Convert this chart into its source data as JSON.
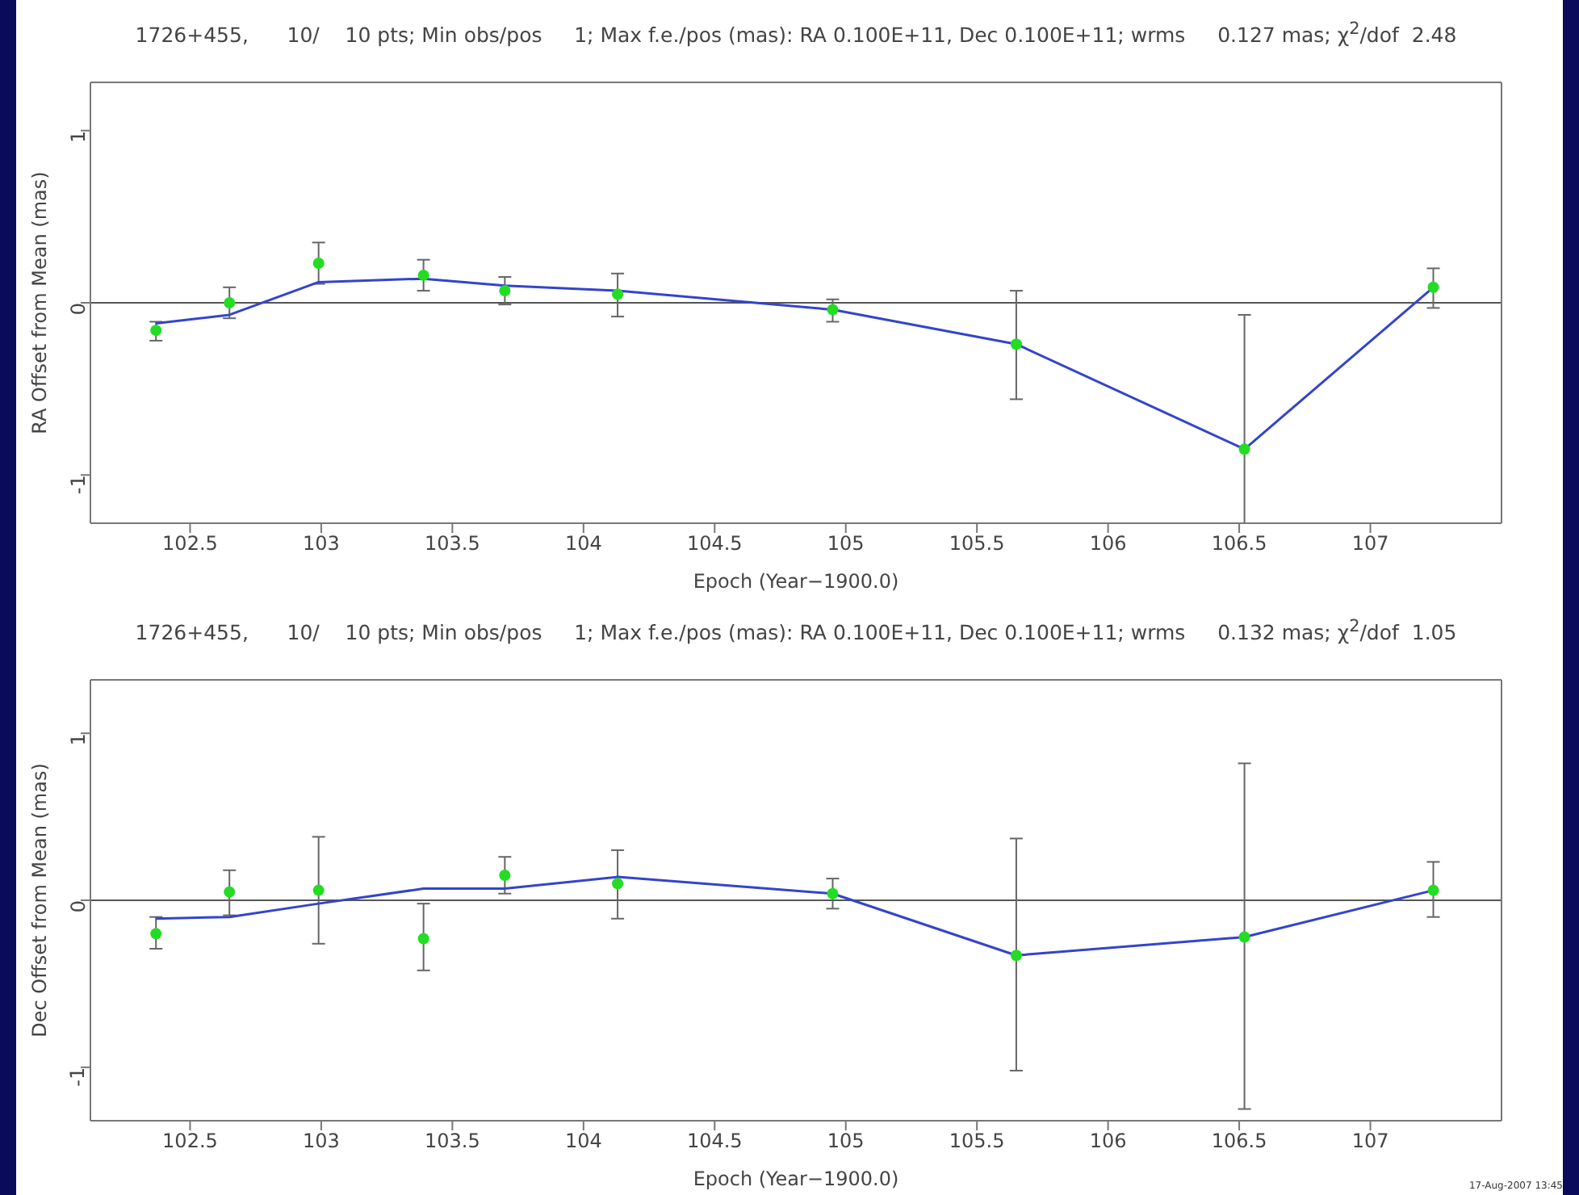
{
  "chart_data": [
    {
      "type": "scatter",
      "title": "1726+455,      10/    10 pts; Min obs/pos     1; Max f.e./pos (mas): RA 0.100E+11, Dec 0.100E+11; wrms     0.127 mas; χ$^{2}$/dof  2.48",
      "xlabel": "Epoch (Year−1900.0)",
      "ylabel": "RA Offset from Mean (mas)",
      "x": [
        102.37,
        102.65,
        102.99,
        103.39,
        103.7,
        104.13,
        104.95,
        105.65,
        106.52,
        107.24
      ],
      "xlim": [
        102.12,
        107.5
      ],
      "xticks": [
        102.5,
        103,
        103.5,
        104,
        104.5,
        105,
        105.5,
        106,
        106.5,
        107
      ],
      "ylim": [
        -1.28,
        1.28
      ],
      "yticks": [
        -1,
        0,
        1
      ],
      "grid": false,
      "ref_lines": [
        {
          "axis": "y",
          "value": 0,
          "color": "#555555"
        }
      ],
      "series": [
        {
          "type": "scatter",
          "color": "#22dd22",
          "marker": "circle",
          "values": [
            -0.16,
            0.0,
            0.23,
            0.16,
            0.07,
            0.05,
            -0.04,
            -0.24,
            -0.85,
            0.09
          ],
          "errors": [
            [
              -0.22,
              -0.11
            ],
            [
              -0.09,
              0.09
            ],
            [
              0.11,
              0.35
            ],
            [
              0.07,
              0.25
            ],
            [
              -0.01,
              0.15
            ],
            [
              -0.08,
              0.17
            ],
            [
              -0.11,
              0.02
            ],
            [
              -0.56,
              0.07
            ],
            [
              -1.28,
              -0.07
            ],
            [
              -0.03,
              0.2
            ]
          ]
        },
        {
          "type": "line",
          "color": "#3344cc",
          "marker": "none",
          "values": [
            -0.12,
            -0.07,
            0.12,
            0.14,
            0.1,
            0.07,
            -0.04,
            -0.24,
            -0.85,
            0.09
          ]
        }
      ]
    },
    {
      "type": "scatter",
      "title": "1726+455,      10/    10 pts; Min obs/pos     1; Max f.e./pos (mas): RA 0.100E+11, Dec 0.100E+11; wrms     0.132 mas; χ$^{2}$/dof  1.05",
      "xlabel": "Epoch (Year−1900.0)",
      "ylabel": "Dec Offset from Mean (mas)",
      "x": [
        102.37,
        102.65,
        102.99,
        103.39,
        103.7,
        104.13,
        104.95,
        105.65,
        106.52,
        107.24
      ],
      "xlim": [
        102.12,
        107.5
      ],
      "xticks": [
        102.5,
        103,
        103.5,
        104,
        104.5,
        105,
        105.5,
        106,
        106.5,
        107
      ],
      "ylim": [
        -1.32,
        1.32
      ],
      "yticks": [
        -1,
        0,
        1
      ],
      "grid": false,
      "ref_lines": [
        {
          "axis": "y",
          "value": 0,
          "color": "#555555"
        }
      ],
      "annotations": [
        "17-Aug-2007 13:45"
      ],
      "series": [
        {
          "type": "scatter",
          "color": "#22dd22",
          "marker": "circle",
          "values": [
            -0.2,
            0.05,
            0.06,
            -0.23,
            0.15,
            0.1,
            0.04,
            -0.33,
            -0.22,
            0.06
          ],
          "errors": [
            [
              -0.29,
              -0.1
            ],
            [
              -0.09,
              0.18
            ],
            [
              -0.26,
              0.38
            ],
            [
              -0.42,
              -0.02
            ],
            [
              0.04,
              0.26
            ],
            [
              -0.11,
              0.3
            ],
            [
              -0.05,
              0.13
            ],
            [
              -1.02,
              0.37
            ],
            [
              -1.25,
              0.82
            ],
            [
              -0.1,
              0.23
            ]
          ]
        },
        {
          "type": "line",
          "color": "#3344cc",
          "marker": "none",
          "values": [
            -0.11,
            -0.1,
            -0.02,
            0.07,
            0.07,
            0.14,
            0.04,
            -0.33,
            -0.22,
            0.06
          ]
        }
      ]
    }
  ]
}
